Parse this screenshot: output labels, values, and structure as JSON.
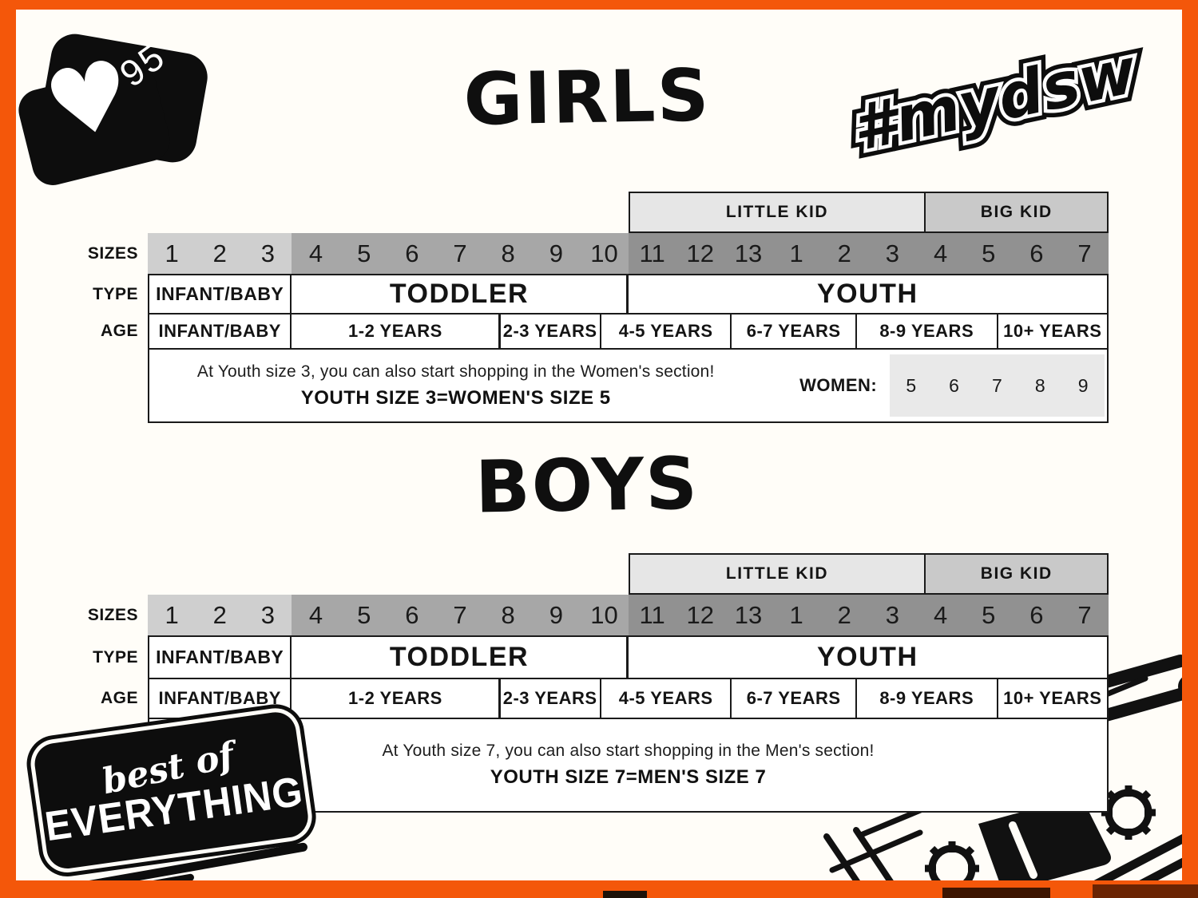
{
  "badge": {
    "icon": "heart-icon",
    "heart_glyph": "♥",
    "count": "95"
  },
  "hashtag": {
    "text": "#mydsw"
  },
  "footer_logo": {
    "line1": "best of",
    "line2": "EVERYTHING"
  },
  "colors": {
    "accent_orange": "#f4570a",
    "size_group_infant_bg": "#cfcfcf",
    "size_group_toddler_bg": "#a7a7a7",
    "size_group_youth_bg": "#919191",
    "little_kid_bg": "#e6e6e6",
    "big_kid_bg": "#c9c9c9",
    "women_strip_bg": "#e9e9e9",
    "ink": "#141414"
  },
  "tables": [
    {
      "id": "girls",
      "title": "GIRLS",
      "row_labels": {
        "sizes": "SIZES",
        "type": "TYPE",
        "age": "AGE"
      },
      "kid_groups": [
        {
          "label": "LITTLE KID",
          "start": 50,
          "end": 81,
          "bg": "#e6e6e6"
        },
        {
          "label": "BIG KID",
          "start": 81,
          "end": 100,
          "bg": "#c9c9c9"
        }
      ],
      "size_group_bg": {
        "infant": "#cfcfcf",
        "toddler": "#a7a7a7",
        "youth": "#919191"
      },
      "sizes": [
        {
          "v": "1",
          "g": "infant"
        },
        {
          "v": "2",
          "g": "infant"
        },
        {
          "v": "3",
          "g": "infant"
        },
        {
          "v": "4",
          "g": "toddler"
        },
        {
          "v": "5",
          "g": "toddler"
        },
        {
          "v": "6",
          "g": "toddler"
        },
        {
          "v": "7",
          "g": "toddler"
        },
        {
          "v": "8",
          "g": "toddler"
        },
        {
          "v": "9",
          "g": "toddler"
        },
        {
          "v": "10",
          "g": "toddler"
        },
        {
          "v": "11",
          "g": "youth"
        },
        {
          "v": "12",
          "g": "youth"
        },
        {
          "v": "13",
          "g": "youth"
        },
        {
          "v": "1",
          "g": "youth"
        },
        {
          "v": "2",
          "g": "youth"
        },
        {
          "v": "3",
          "g": "youth"
        },
        {
          "v": "4",
          "g": "youth"
        },
        {
          "v": "5",
          "g": "youth"
        },
        {
          "v": "6",
          "g": "youth"
        },
        {
          "v": "7",
          "g": "youth"
        }
      ],
      "types": [
        {
          "label": "INFANT/BABY",
          "start": 0,
          "end": 15,
          "cls": "small"
        },
        {
          "label": "TODDLER",
          "start": 15,
          "end": 50,
          "cls": "big"
        },
        {
          "label": "YOUTH",
          "start": 50,
          "end": 100,
          "cls": "big"
        }
      ],
      "ages": [
        {
          "label": "INFANT/BABY",
          "start": 0,
          "end": 15
        },
        {
          "label": "1-2 YEARS",
          "start": 15,
          "end": 36.7
        },
        {
          "label": "2-3 YEARS",
          "start": 36.7,
          "end": 47.2
        },
        {
          "label": "4-5 YEARS",
          "start": 47.2,
          "end": 60.8
        },
        {
          "label": "6-7 YEARS",
          "start": 60.8,
          "end": 73.8
        },
        {
          "label": "8-9 YEARS",
          "start": 73.8,
          "end": 88.5
        },
        {
          "label": "10+ YEARS",
          "start": 88.5,
          "end": 100
        }
      ],
      "note": {
        "line1": "At Youth size 3, you can also start shopping in the Women's section!",
        "line2": "YOUTH SIZE 3=WOMEN'S SIZE 5"
      },
      "women": {
        "label": "WOMEN:",
        "values": [
          "5",
          "6",
          "7",
          "8",
          "9"
        ],
        "strip_start": 77.3
      }
    },
    {
      "id": "boys",
      "title": "BOYS",
      "row_labels": {
        "sizes": "SIZES",
        "type": "TYPE",
        "age": "AGE"
      },
      "kid_groups": [
        {
          "label": "LITTLE KID",
          "start": 50,
          "end": 81,
          "bg": "#e6e6e6"
        },
        {
          "label": "BIG KID",
          "start": 81,
          "end": 100,
          "bg": "#c9c9c9"
        }
      ],
      "size_group_bg": {
        "infant": "#cfcfcf",
        "toddler": "#a7a7a7",
        "youth": "#919191"
      },
      "sizes": [
        {
          "v": "1",
          "g": "infant"
        },
        {
          "v": "2",
          "g": "infant"
        },
        {
          "v": "3",
          "g": "infant"
        },
        {
          "v": "4",
          "g": "toddler"
        },
        {
          "v": "5",
          "g": "toddler"
        },
        {
          "v": "6",
          "g": "toddler"
        },
        {
          "v": "7",
          "g": "toddler"
        },
        {
          "v": "8",
          "g": "toddler"
        },
        {
          "v": "9",
          "g": "toddler"
        },
        {
          "v": "10",
          "g": "toddler"
        },
        {
          "v": "11",
          "g": "youth"
        },
        {
          "v": "12",
          "g": "youth"
        },
        {
          "v": "13",
          "g": "youth"
        },
        {
          "v": "1",
          "g": "youth"
        },
        {
          "v": "2",
          "g": "youth"
        },
        {
          "v": "3",
          "g": "youth"
        },
        {
          "v": "4",
          "g": "youth"
        },
        {
          "v": "5",
          "g": "youth"
        },
        {
          "v": "6",
          "g": "youth"
        },
        {
          "v": "7",
          "g": "youth"
        }
      ],
      "types": [
        {
          "label": "INFANT/BABY",
          "start": 0,
          "end": 15,
          "cls": "small"
        },
        {
          "label": "TODDLER",
          "start": 15,
          "end": 50,
          "cls": "big"
        },
        {
          "label": "YOUTH",
          "start": 50,
          "end": 100,
          "cls": "big"
        }
      ],
      "ages": [
        {
          "label": "INFANT/BABY",
          "start": 0,
          "end": 15
        },
        {
          "label": "1-2 YEARS",
          "start": 15,
          "end": 36.7
        },
        {
          "label": "2-3 YEARS",
          "start": 36.7,
          "end": 47.2
        },
        {
          "label": "4-5 YEARS",
          "start": 47.2,
          "end": 60.8
        },
        {
          "label": "6-7 YEARS",
          "start": 60.8,
          "end": 73.8
        },
        {
          "label": "8-9 YEARS",
          "start": 73.8,
          "end": 88.5
        },
        {
          "label": "10+ YEARS",
          "start": 88.5,
          "end": 100
        }
      ],
      "note": {
        "line1": "At Youth size 7, you can also start shopping in the Men's section!",
        "line2": "YOUTH SIZE 7=MEN'S SIZE 7"
      }
    }
  ]
}
